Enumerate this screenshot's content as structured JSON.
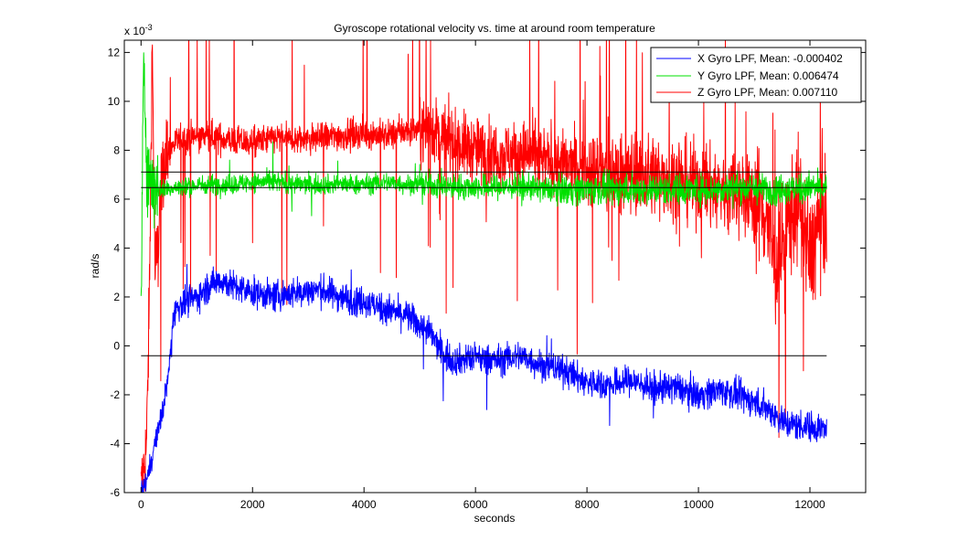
{
  "chart_data": {
    "type": "line",
    "title": "Gyroscope rotational velocity vs. time at around room temperature",
    "xlabel": "seconds",
    "ylabel": "rad/s",
    "y_multiplier": "x 10",
    "y_multiplier_exp": "-3",
    "xlim": [
      -300,
      13000
    ],
    "ylim": [
      -6,
      12.5
    ],
    "x_ticks": [
      0,
      2000,
      4000,
      6000,
      8000,
      10000,
      12000
    ],
    "x_tick_labels": [
      "0",
      "2000",
      "4000",
      "6000",
      "8000",
      "10000",
      "12000"
    ],
    "y_ticks": [
      -6,
      -4,
      -2,
      0,
      2,
      4,
      6,
      8,
      10,
      12
    ],
    "y_tick_labels": [
      "-6",
      "-4",
      "-2",
      "0",
      "2",
      "4",
      "6",
      "8",
      "10",
      "12"
    ],
    "grid": false,
    "legend_position": "top-right",
    "series": [
      {
        "name": "X Gyro LPF, Mean: -0.000402",
        "color": "#0000ff",
        "mean": -0.402,
        "x": [
          0,
          100,
          200,
          300,
          400,
          500,
          600,
          800,
          1000,
          1200,
          1400,
          1600,
          1800,
          2000,
          2400,
          2800,
          3200,
          3600,
          4000,
          4400,
          4800,
          5200,
          5400,
          5600,
          6000,
          6400,
          6800,
          7200,
          7600,
          8000,
          8400,
          8800,
          9200,
          9600,
          10000,
          10400,
          10800,
          11200,
          11600,
          12000,
          12300
        ],
        "y": [
          -6,
          -5.5,
          -4.5,
          -3.5,
          -2.5,
          -1,
          1.5,
          1.8,
          2,
          2.4,
          2.7,
          2.5,
          2.3,
          2.2,
          2.0,
          2.2,
          2.3,
          2.0,
          1.8,
          1.5,
          1.2,
          0.5,
          -0.3,
          -0.6,
          -0.5,
          -0.6,
          -0.4,
          -0.8,
          -1.0,
          -1.5,
          -1.6,
          -1.4,
          -1.8,
          -1.7,
          -2.0,
          -1.8,
          -2.1,
          -2.5,
          -3.2,
          -3.3,
          -3.4
        ]
      },
      {
        "name": "Y Gyro LPF, Mean: 0.006474",
        "color": "#00e000",
        "mean": 6.474,
        "x": [
          0,
          50,
          100,
          200,
          400,
          800,
          1200,
          1600,
          2000,
          2400,
          2800,
          3200,
          3600,
          4000,
          4400,
          4800,
          5200,
          5600,
          6000,
          6400,
          6800,
          7200,
          7600,
          8000,
          8400,
          8800,
          9200,
          9600,
          10000,
          10400,
          10800,
          11200,
          11600,
          12000,
          12300
        ],
        "y": [
          1.0,
          12.0,
          7.5,
          6.5,
          6.4,
          6.5,
          6.6,
          6.6,
          6.7,
          6.7,
          6.6,
          6.6,
          6.6,
          6.6,
          6.7,
          6.6,
          6.6,
          6.5,
          6.5,
          6.5,
          6.5,
          6.4,
          6.4,
          6.4,
          6.4,
          6.4,
          6.4,
          6.4,
          6.4,
          6.4,
          6.5,
          6.4,
          6.4,
          6.5,
          6.4
        ]
      },
      {
        "name": "Z Gyro LPF, Mean: 0.007110",
        "color": "#ff0000",
        "mean": 7.11,
        "x": [
          0,
          100,
          150,
          200,
          250,
          300,
          400,
          600,
          800,
          1200,
          1600,
          2000,
          2400,
          2800,
          3200,
          3600,
          4000,
          4400,
          4800,
          5200,
          5600,
          6000,
          6400,
          6800,
          7200,
          7600,
          8000,
          8400,
          8800,
          9200,
          9600,
          10000,
          10400,
          10800,
          11200,
          11400,
          11600,
          11800,
          12000,
          12200,
          12300
        ],
        "y": [
          -6,
          -4,
          2,
          12.5,
          3,
          4,
          7.5,
          8.3,
          8.5,
          8.6,
          8.4,
          8.3,
          8.5,
          8.4,
          8.5,
          8.6,
          8.7,
          8.6,
          8.8,
          8.9,
          8.3,
          8.0,
          7.8,
          7.9,
          7.6,
          7.4,
          7.2,
          7.0,
          7.1,
          7.0,
          6.8,
          6.6,
          6.4,
          6.3,
          5.5,
          3.0,
          5.0,
          6.0,
          3.5,
          5.5,
          5.0
        ]
      }
    ]
  }
}
